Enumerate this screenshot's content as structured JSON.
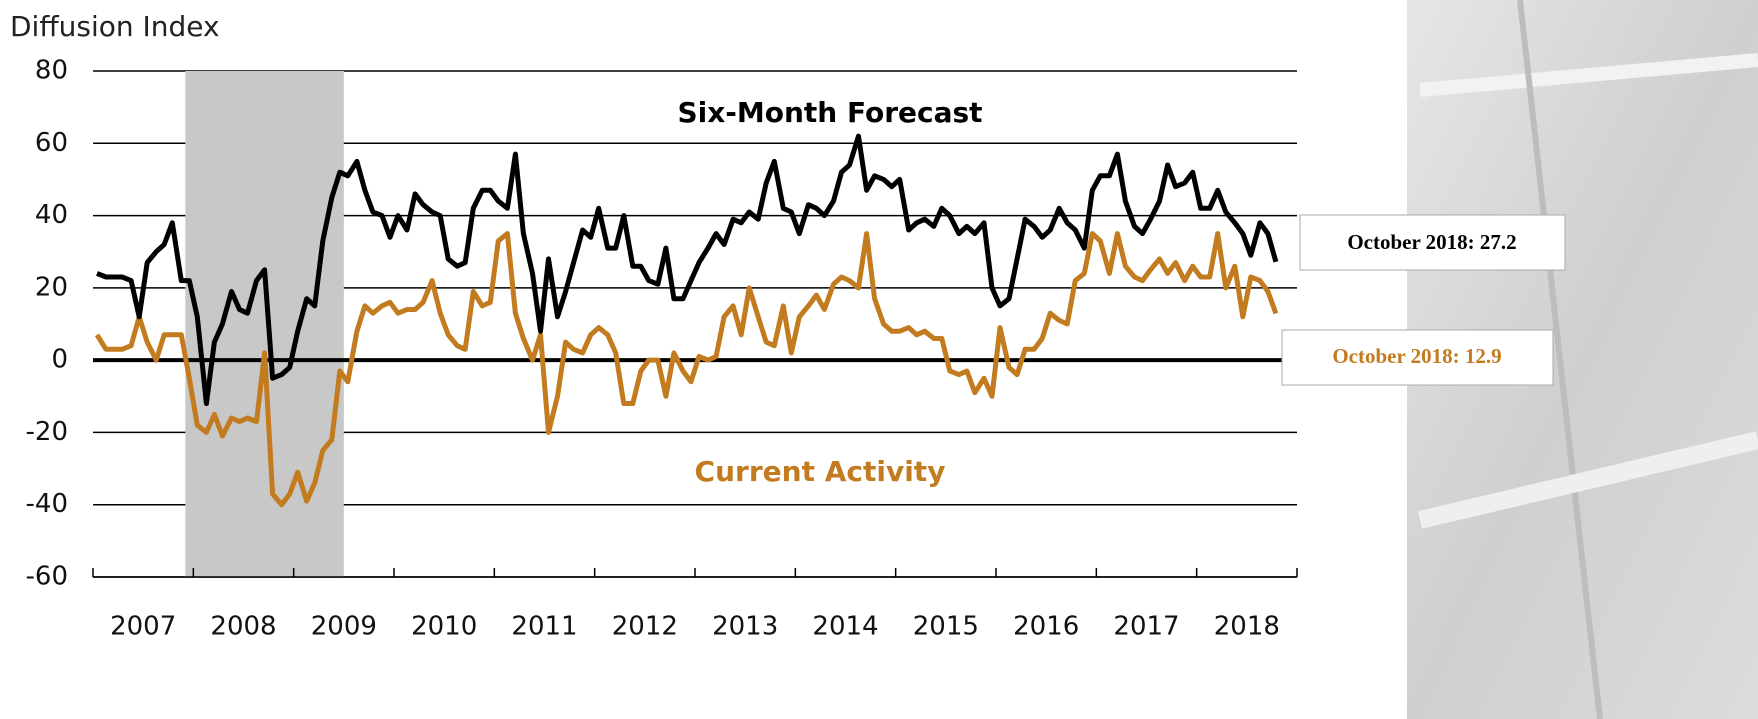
{
  "chart_data": {
    "type": "line",
    "y_axis_title": "Diffusion Index",
    "x": [
      2007.04,
      2007.13,
      2007.21,
      2007.29,
      2007.38,
      2007.46,
      2007.54,
      2007.63,
      2007.71,
      2007.79,
      2007.88,
      2007.96,
      2008.04,
      2008.13,
      2008.21,
      2008.29,
      2008.38,
      2008.46,
      2008.54,
      2008.63,
      2008.71,
      2008.79,
      2008.88,
      2008.96,
      2009.04,
      2009.13,
      2009.21,
      2009.29,
      2009.38,
      2009.46,
      2009.54,
      2009.63,
      2009.71,
      2009.79,
      2009.88,
      2009.96,
      2010.04,
      2010.13,
      2010.21,
      2010.29,
      2010.38,
      2010.46,
      2010.54,
      2010.63,
      2010.71,
      2010.79,
      2010.88,
      2010.96,
      2011.04,
      2011.13,
      2011.21,
      2011.29,
      2011.38,
      2011.46,
      2011.54,
      2011.63,
      2011.71,
      2011.79,
      2011.88,
      2011.96,
      2012.04,
      2012.13,
      2012.21,
      2012.29,
      2012.38,
      2012.46,
      2012.54,
      2012.63,
      2012.71,
      2012.79,
      2012.88,
      2012.96,
      2013.04,
      2013.13,
      2013.21,
      2013.29,
      2013.38,
      2013.46,
      2013.54,
      2013.63,
      2013.71,
      2013.79,
      2013.88,
      2013.96,
      2014.04,
      2014.13,
      2014.21,
      2014.29,
      2014.38,
      2014.46,
      2014.54,
      2014.63,
      2014.71,
      2014.79,
      2014.88,
      2014.96,
      2015.04,
      2015.13,
      2015.21,
      2015.29,
      2015.38,
      2015.46,
      2015.54,
      2015.63,
      2015.71,
      2015.79,
      2015.88,
      2015.96,
      2016.04,
      2016.13,
      2016.21,
      2016.29,
      2016.38,
      2016.46,
      2016.54,
      2016.63,
      2016.71,
      2016.79,
      2016.88,
      2016.96,
      2017.04,
      2017.13,
      2017.21,
      2017.29,
      2017.38,
      2017.46,
      2017.54,
      2017.63,
      2017.71,
      2017.79,
      2017.88,
      2017.96,
      2018.04,
      2018.13,
      2018.21,
      2018.29,
      2018.38,
      2018.46,
      2018.54,
      2018.63,
      2018.71,
      2018.79
    ],
    "series": [
      {
        "name": "Six-Month Forecast",
        "color": "#000000",
        "values": [
          24,
          23,
          23,
          23,
          22,
          12,
          27,
          30,
          32,
          38,
          22,
          22,
          12,
          -12,
          5,
          10,
          19,
          14,
          13,
          22,
          25,
          -5,
          -4,
          -2,
          8,
          17,
          15,
          33,
          45,
          52,
          51,
          55,
          47,
          41,
          40,
          34,
          40,
          36,
          46,
          43,
          41,
          40,
          28,
          26,
          27,
          42,
          47,
          47,
          44,
          42,
          57,
          35,
          24,
          8,
          28,
          12,
          19,
          27,
          36,
          34,
          42,
          31,
          31,
          40,
          26,
          26,
          22,
          21,
          31,
          17,
          17,
          22,
          27,
          31,
          35,
          32,
          39,
          38,
          41,
          39,
          49,
          55,
          42,
          41,
          35,
          43,
          42,
          40,
          44,
          52,
          54,
          62,
          47,
          51,
          50,
          48,
          50,
          36,
          38,
          39,
          37,
          42,
          40,
          35,
          37,
          35,
          38,
          20,
          15,
          17,
          28,
          39,
          37,
          34,
          36,
          42,
          38,
          36,
          31,
          47,
          51,
          51,
          57,
          44,
          37,
          35,
          39,
          44,
          54,
          48,
          49,
          52,
          42,
          42,
          47,
          41,
          38,
          35,
          29,
          38,
          35,
          27.2
        ]
      },
      {
        "name": "Current Activity",
        "color": "#c27b1e",
        "values": [
          7,
          3,
          3,
          3,
          4,
          12,
          5,
          0,
          7,
          7,
          7,
          -5,
          -18,
          -20,
          -15,
          -21,
          -16,
          -17,
          -16,
          -17,
          2,
          -37,
          -40,
          -37,
          -31,
          -39,
          -34,
          -25,
          -22,
          -3,
          -6,
          8,
          15,
          13,
          15,
          16,
          13,
          14,
          14,
          16,
          22,
          13,
          7,
          4,
          3,
          19,
          15,
          16,
          33,
          35,
          13,
          6,
          0,
          7,
          -20,
          -10,
          5,
          3,
          2,
          7,
          9,
          7,
          2,
          -12,
          -12,
          -3,
          0,
          0,
          -10,
          2,
          -3,
          -6,
          1,
          0,
          1,
          12,
          15,
          7,
          20,
          12,
          5,
          4,
          15,
          2,
          12,
          15,
          18,
          14,
          21,
          23,
          22,
          20,
          35,
          17,
          10,
          8,
          8,
          9,
          7,
          8,
          6,
          6,
          -3,
          -4,
          -3,
          -9,
          -5,
          -10,
          9,
          -2,
          -4,
          3,
          3,
          6,
          13,
          11,
          10,
          22,
          24,
          35,
          33,
          24,
          35,
          26,
          23,
          22,
          25,
          28,
          24,
          27,
          22,
          26,
          23,
          23,
          35,
          20,
          26,
          12,
          23,
          22,
          19,
          12.9
        ]
      }
    ],
    "callouts": [
      "October 2018: 27.2",
      "October 2018: 12.9"
    ],
    "recession_shade": [
      2007.92,
      2009.5
    ],
    "xlim": [
      2007,
      2019
    ],
    "xticks": [
      {
        "value": 2007.5,
        "label": "2007"
      },
      {
        "value": 2008.5,
        "label": "2008"
      },
      {
        "value": 2009.5,
        "label": "2009"
      },
      {
        "value": 2010.5,
        "label": "2010"
      },
      {
        "value": 2011.5,
        "label": "2011"
      },
      {
        "value": 2012.5,
        "label": "2012"
      },
      {
        "value": 2013.5,
        "label": "2013"
      },
      {
        "value": 2014.5,
        "label": "2014"
      },
      {
        "value": 2015.5,
        "label": "2015"
      },
      {
        "value": 2016.5,
        "label": "2016"
      },
      {
        "value": 2017.5,
        "label": "2017"
      },
      {
        "value": 2018.5,
        "label": "2018"
      }
    ],
    "ylim": [
      -60,
      80
    ],
    "yticks": [
      -60,
      -40,
      -20,
      0,
      20,
      40,
      60,
      80
    ],
    "grid": true
  }
}
